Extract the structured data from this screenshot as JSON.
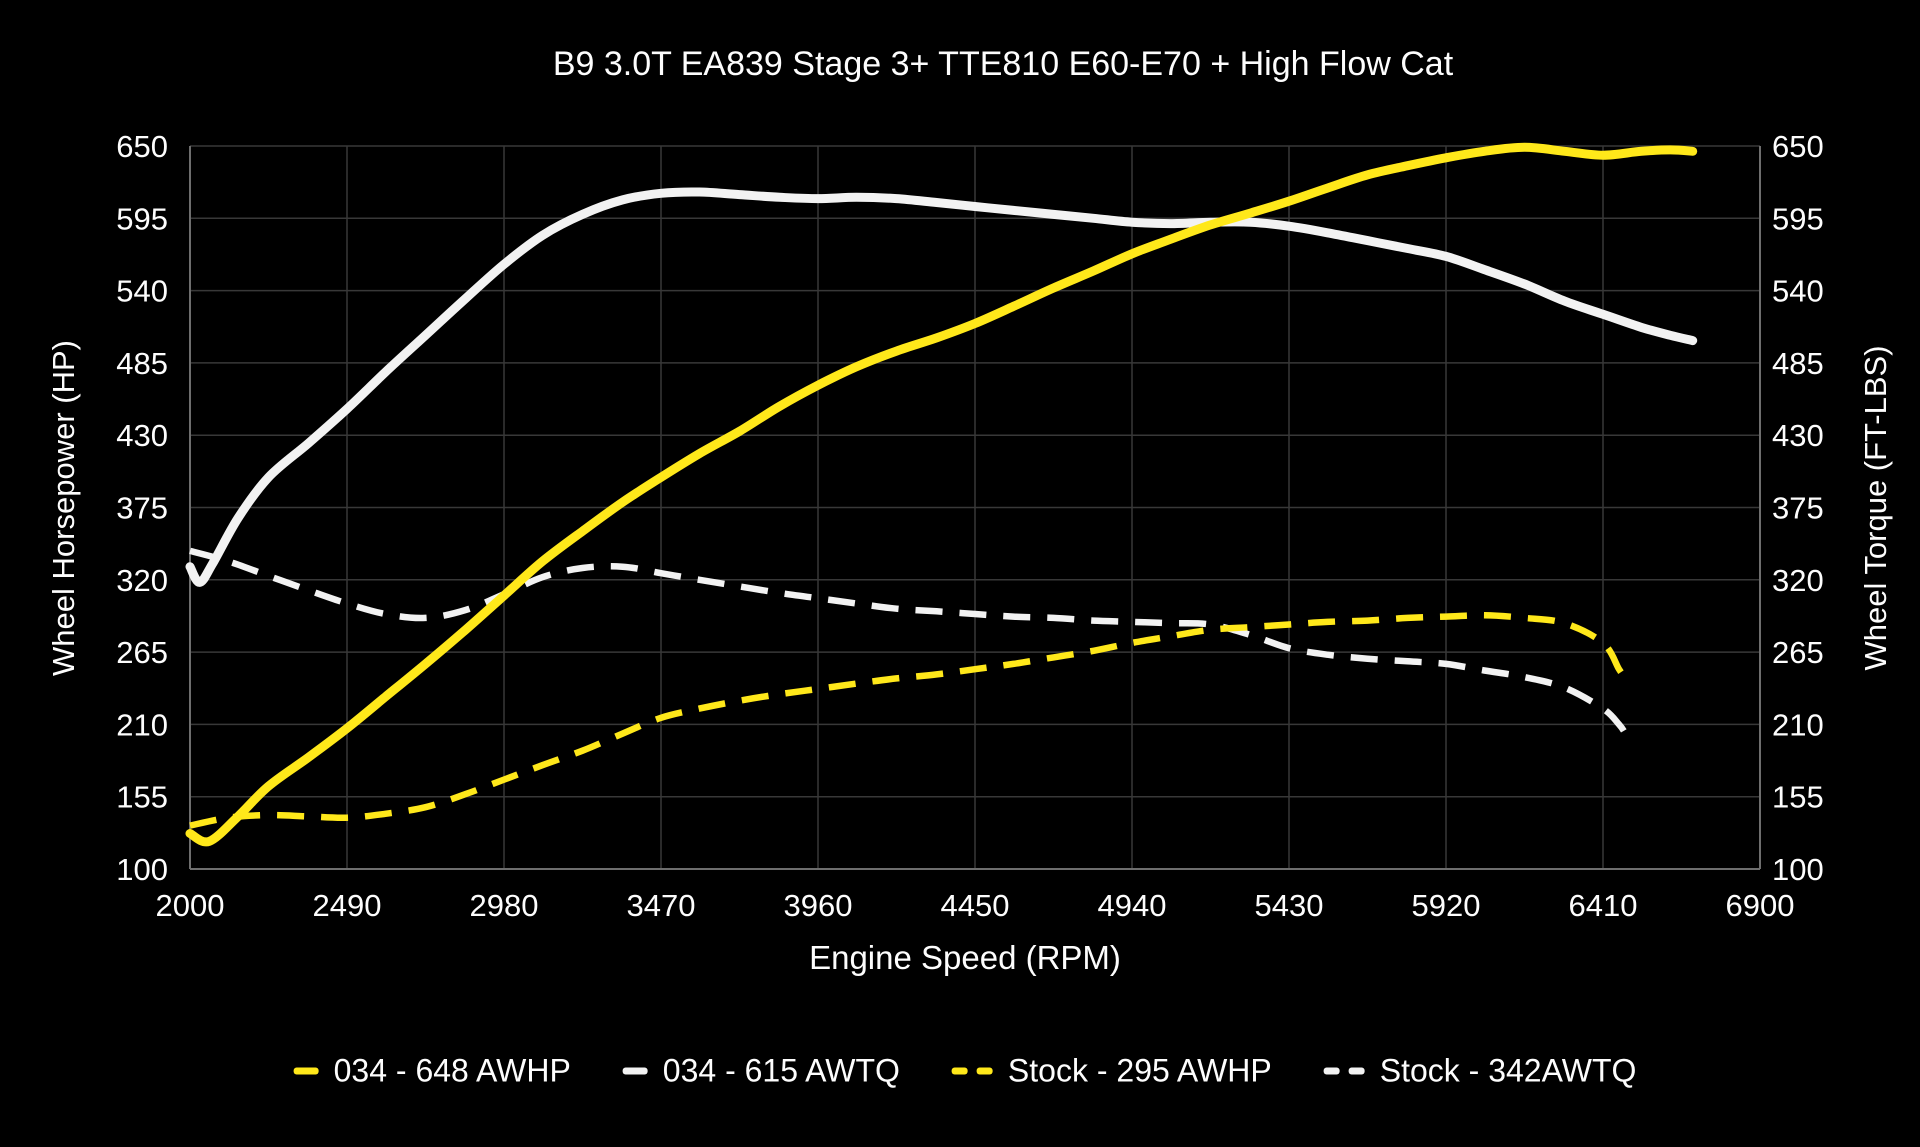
{
  "chart_data": {
    "type": "line",
    "title": "B9 3.0T EA839 Stage 3+ TTE810 E60-E70 + High Flow Cat",
    "xlabel": "Engine Speed (RPM)",
    "ylabel_left": "Wheel Horsepower (HP)",
    "ylabel_right": "Wheel Torque (FT-LBS)",
    "xlim": [
      2000,
      6900
    ],
    "ylim": [
      100,
      650
    ],
    "xticks": [
      2000,
      2490,
      2980,
      3470,
      3960,
      4450,
      4940,
      5430,
      5920,
      6410,
      6900
    ],
    "yticks": [
      100,
      155,
      210,
      265,
      320,
      375,
      430,
      485,
      540,
      595,
      650
    ],
    "grid": true,
    "legend_position": "bottom",
    "colors": {
      "background": "#000000",
      "grid": "#383838",
      "axis_frame": "#6e6e6e",
      "text": "#fdfdfd",
      "yellow": "#ffe81a",
      "white": "#f2f2f2"
    },
    "series": [
      {
        "name": "Stock - 342AWTQ",
        "color": "#f2f2f2",
        "style": "dashed",
        "width": 6.5,
        "points": [
          [
            2000,
            342
          ],
          [
            2120,
            334
          ],
          [
            2245,
            323
          ],
          [
            2370,
            312
          ],
          [
            2490,
            302
          ],
          [
            2610,
            294
          ],
          [
            2735,
            291
          ],
          [
            2860,
            297
          ],
          [
            2980,
            309
          ],
          [
            3100,
            322
          ],
          [
            3225,
            329
          ],
          [
            3350,
            330
          ],
          [
            3470,
            325
          ],
          [
            3590,
            320
          ],
          [
            3715,
            315
          ],
          [
            3840,
            310
          ],
          [
            3960,
            306
          ],
          [
            4080,
            302
          ],
          [
            4205,
            298
          ],
          [
            4330,
            296
          ],
          [
            4450,
            294
          ],
          [
            4570,
            292
          ],
          [
            4695,
            291
          ],
          [
            4820,
            289
          ],
          [
            4940,
            288
          ],
          [
            5060,
            287
          ],
          [
            5185,
            286
          ],
          [
            5310,
            278
          ],
          [
            5430,
            268
          ],
          [
            5550,
            263
          ],
          [
            5675,
            260
          ],
          [
            5800,
            258
          ],
          [
            5920,
            256
          ],
          [
            6040,
            251
          ],
          [
            6165,
            246
          ],
          [
            6290,
            238
          ],
          [
            6410,
            222
          ],
          [
            6460,
            210
          ],
          [
            6480,
            203
          ]
        ]
      },
      {
        "name": "Stock - 295 AWHP",
        "color": "#ffe81a",
        "style": "dashed",
        "width": 6.5,
        "points": [
          [
            2000,
            133
          ],
          [
            2120,
            139
          ],
          [
            2245,
            141
          ],
          [
            2370,
            140
          ],
          [
            2490,
            139
          ],
          [
            2610,
            142
          ],
          [
            2735,
            147
          ],
          [
            2860,
            157
          ],
          [
            2980,
            168
          ],
          [
            3100,
            179
          ],
          [
            3225,
            190
          ],
          [
            3350,
            203
          ],
          [
            3470,
            215
          ],
          [
            3590,
            222
          ],
          [
            3715,
            228
          ],
          [
            3840,
            233
          ],
          [
            3960,
            237
          ],
          [
            4080,
            241
          ],
          [
            4205,
            245
          ],
          [
            4330,
            248
          ],
          [
            4450,
            252
          ],
          [
            4570,
            256
          ],
          [
            4695,
            261
          ],
          [
            4820,
            266
          ],
          [
            4940,
            272
          ],
          [
            5060,
            277
          ],
          [
            5185,
            282
          ],
          [
            5310,
            284
          ],
          [
            5430,
            286
          ],
          [
            5550,
            288
          ],
          [
            5675,
            289
          ],
          [
            5800,
            291
          ],
          [
            5920,
            292
          ],
          [
            6040,
            293
          ],
          [
            6165,
            291
          ],
          [
            6290,
            287
          ],
          [
            6410,
            272
          ],
          [
            6460,
            252
          ],
          [
            6480,
            245
          ]
        ]
      },
      {
        "name": "034 - 615 AWTQ",
        "color": "#f2f2f2",
        "style": "solid",
        "width": 9,
        "points": [
          [
            2000,
            330
          ],
          [
            2030,
            318
          ],
          [
            2070,
            332
          ],
          [
            2150,
            367
          ],
          [
            2245,
            398
          ],
          [
            2370,
            424
          ],
          [
            2490,
            450
          ],
          [
            2610,
            478
          ],
          [
            2735,
            506
          ],
          [
            2860,
            534
          ],
          [
            2980,
            560
          ],
          [
            3100,
            582
          ],
          [
            3225,
            598
          ],
          [
            3350,
            609
          ],
          [
            3470,
            614
          ],
          [
            3590,
            615
          ],
          [
            3715,
            613
          ],
          [
            3840,
            611
          ],
          [
            3960,
            610
          ],
          [
            4080,
            611
          ],
          [
            4205,
            610
          ],
          [
            4330,
            607
          ],
          [
            4450,
            604
          ],
          [
            4570,
            601
          ],
          [
            4695,
            598
          ],
          [
            4820,
            595
          ],
          [
            4940,
            592
          ],
          [
            5060,
            591
          ],
          [
            5185,
            592
          ],
          [
            5310,
            592
          ],
          [
            5430,
            589
          ],
          [
            5550,
            584
          ],
          [
            5675,
            578
          ],
          [
            5800,
            572
          ],
          [
            5920,
            566
          ],
          [
            6040,
            556
          ],
          [
            6165,
            545
          ],
          [
            6290,
            532
          ],
          [
            6410,
            522
          ],
          [
            6530,
            512
          ],
          [
            6620,
            506
          ],
          [
            6690,
            502
          ]
        ]
      },
      {
        "name": "034 - 648 AWHP",
        "color": "#ffe81a",
        "style": "solid",
        "width": 9,
        "points": [
          [
            2000,
            127
          ],
          [
            2060,
            121
          ],
          [
            2150,
            140
          ],
          [
            2245,
            163
          ],
          [
            2370,
            185
          ],
          [
            2490,
            207
          ],
          [
            2610,
            231
          ],
          [
            2735,
            256
          ],
          [
            2860,
            282
          ],
          [
            2980,
            308
          ],
          [
            3100,
            334
          ],
          [
            3225,
            357
          ],
          [
            3350,
            379
          ],
          [
            3470,
            398
          ],
          [
            3590,
            416
          ],
          [
            3715,
            433
          ],
          [
            3840,
            452
          ],
          [
            3960,
            468
          ],
          [
            4080,
            482
          ],
          [
            4205,
            494
          ],
          [
            4330,
            504
          ],
          [
            4450,
            515
          ],
          [
            4570,
            528
          ],
          [
            4695,
            542
          ],
          [
            4820,
            555
          ],
          [
            4940,
            568
          ],
          [
            5060,
            579
          ],
          [
            5185,
            590
          ],
          [
            5310,
            599
          ],
          [
            5430,
            608
          ],
          [
            5550,
            618
          ],
          [
            5675,
            628
          ],
          [
            5800,
            635
          ],
          [
            5920,
            641
          ],
          [
            6040,
            646
          ],
          [
            6165,
            649
          ],
          [
            6290,
            646
          ],
          [
            6410,
            643
          ],
          [
            6530,
            646
          ],
          [
            6620,
            647
          ],
          [
            6690,
            646
          ]
        ]
      }
    ],
    "legend_order": [
      "034 - 648 AWHP",
      "034 - 615 AWTQ",
      "Stock - 295 AWHP",
      "Stock - 342AWTQ"
    ]
  }
}
